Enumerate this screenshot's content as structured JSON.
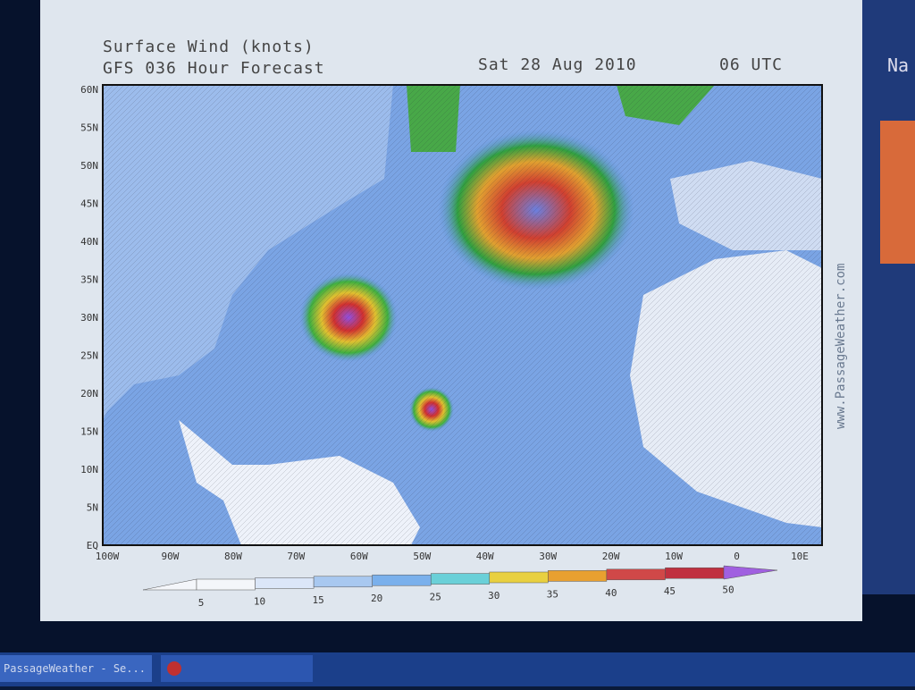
{
  "map": {
    "title": "Surface Wind (knots)",
    "subtitle": "GFS 036 Hour Forecast",
    "date": "Sat 28 Aug 2010",
    "time": "06 UTC",
    "watermark": "www.PassageWeather.com",
    "lat_labels": [
      "60N",
      "55N",
      "50N",
      "45N",
      "40N",
      "35N",
      "30N",
      "25N",
      "20N",
      "15N",
      "10N",
      "5N",
      "EQ"
    ],
    "lon_labels": [
      "100W",
      "90W",
      "80W",
      "70W",
      "60W",
      "50W",
      "40W",
      "30W",
      "20W",
      "10W",
      "0",
      "10E"
    ]
  },
  "colorbar": {
    "labels": [
      "5",
      "10",
      "15",
      "20",
      "25",
      "30",
      "35",
      "40",
      "45",
      "50"
    ]
  },
  "side_panel": {
    "heading": "Na"
  },
  "taskbar": {
    "item": "PassageWeather - Se..."
  }
}
